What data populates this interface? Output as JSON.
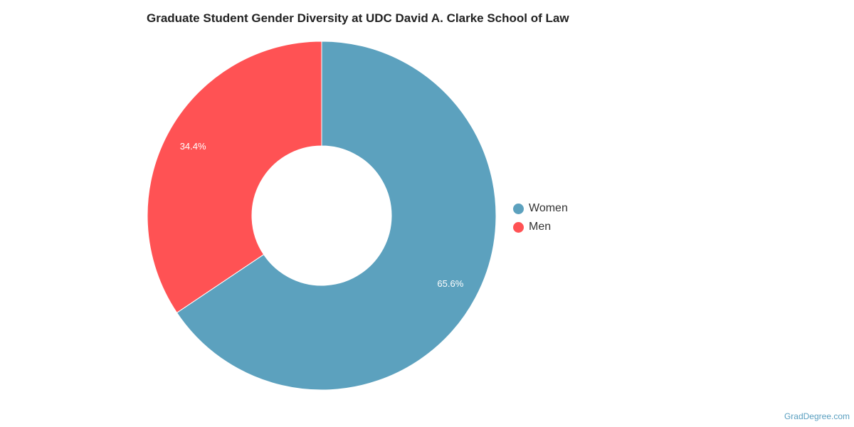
{
  "chart_data": {
    "type": "pie",
    "variant": "donut",
    "title": "Graduate Student Gender Diversity at UDC David A. Clarke School of Law",
    "categories": [
      "Women",
      "Men"
    ],
    "values": [
      65.6,
      34.4
    ],
    "value_labels": [
      "65.6%",
      "34.4%"
    ],
    "colors": [
      "#5ca1be",
      "#ff5254"
    ],
    "legend_position": "right"
  },
  "watermark": "GradDegree.com"
}
